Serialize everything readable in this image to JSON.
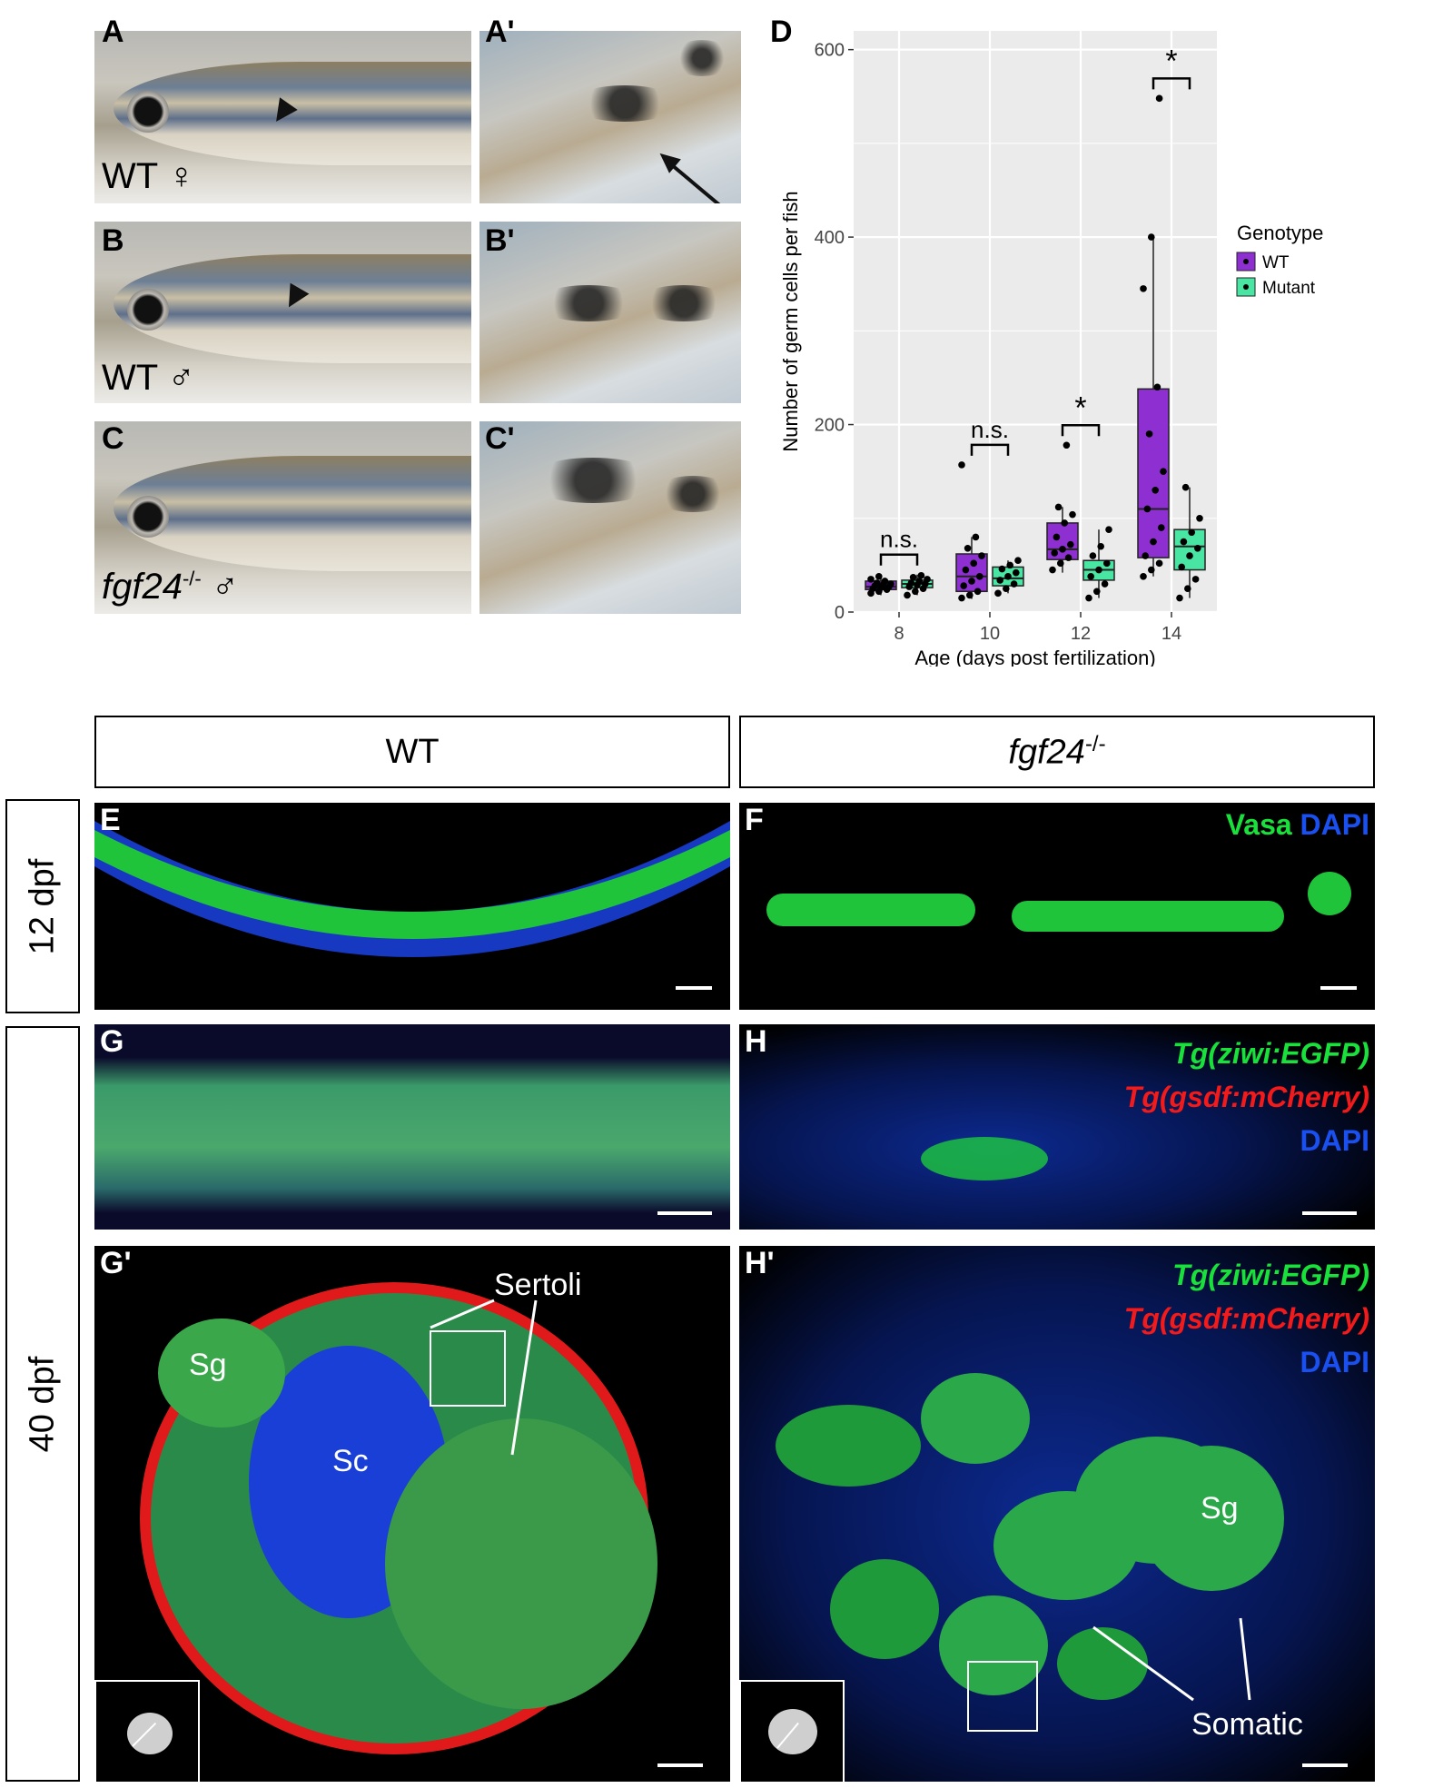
{
  "panels": {
    "A": "A",
    "A_prime": "A'",
    "B": "B",
    "B_prime": "B'",
    "C": "C",
    "C_prime": "C'",
    "D": "D",
    "E": "E",
    "F": "F",
    "G": "G",
    "H": "H",
    "G_prime": "G'",
    "H_prime": "H'"
  },
  "fish_labels": {
    "a": "WT ♀",
    "b": "WT ♂",
    "c_gene": "fgf24",
    "c_sup": "-/-",
    "c_sym": " ♂"
  },
  "column_headers": {
    "wt": "WT",
    "mut_gene": "fgf24",
    "mut_sup": "-/-"
  },
  "row_labels": {
    "top": "12 dpf",
    "bottom": "40 dpf"
  },
  "channels": {
    "vasa": "Vasa",
    "dapi": "DAPI",
    "ziwi": "Tg(ziwi:EGFP)",
    "gsdf": "Tg(gsdf:mCherry)"
  },
  "annotations": {
    "sertoli": "Sertoli",
    "sg": "Sg",
    "sc": "Sc",
    "somatic": "Somatic"
  },
  "colors": {
    "wt": "#8e2fd1",
    "mutant": "#49e5a3",
    "vasa_green": "#19e03a",
    "dapi_blue": "#1a4ff0",
    "mcherry_red": "#f21a1a",
    "panel_bg": "#ebebeb"
  },
  "chart_data": {
    "type": "box",
    "title": "",
    "xlabel": "Age (days post fertilization)",
    "ylabel": "Number of germ cells per fish",
    "categories": [
      "8",
      "10",
      "12",
      "14"
    ],
    "ylim": [
      0,
      620
    ],
    "yticks": [
      0,
      200,
      400,
      600
    ],
    "grid": true,
    "legend": {
      "title": "Genotype",
      "position": "right",
      "entries": [
        "WT",
        "Mutant"
      ]
    },
    "series": [
      {
        "name": "WT",
        "boxes": [
          {
            "q1": 24,
            "median": 27,
            "q3": 33,
            "whisker_low": 18,
            "whisker_high": 40
          },
          {
            "q1": 22,
            "median": 38,
            "q3": 62,
            "whisker_low": 14,
            "whisker_high": 80
          },
          {
            "q1": 56,
            "median": 67,
            "q3": 95,
            "whisker_low": 42,
            "whisker_high": 112
          },
          {
            "q1": 58,
            "median": 110,
            "q3": 238,
            "whisker_low": 38,
            "whisker_high": 400
          }
        ],
        "points": [
          [
            20,
            22,
            24,
            25,
            26,
            27,
            28,
            29,
            30,
            31,
            33,
            35,
            38
          ],
          [
            15,
            18,
            22,
            28,
            33,
            38,
            45,
            52,
            60,
            68,
            80,
            157
          ],
          [
            45,
            52,
            58,
            63,
            67,
            72,
            80,
            95,
            104,
            112,
            178
          ],
          [
            38,
            45,
            52,
            60,
            75,
            90,
            110,
            130,
            150,
            190,
            240,
            345,
            400,
            548
          ]
        ]
      },
      {
        "name": "Mutant",
        "boxes": [
          {
            "q1": 26,
            "median": 30,
            "q3": 34,
            "whisker_low": 18,
            "whisker_high": 40
          },
          {
            "q1": 28,
            "median": 36,
            "q3": 48,
            "whisker_low": 20,
            "whisker_high": 55
          },
          {
            "q1": 34,
            "median": 45,
            "q3": 55,
            "whisker_low": 15,
            "whisker_high": 88
          },
          {
            "q1": 45,
            "median": 70,
            "q3": 88,
            "whisker_low": 15,
            "whisker_high": 133
          }
        ],
        "points": [
          [
            18,
            22,
            25,
            27,
            29,
            30,
            31,
            33,
            35,
            37,
            39
          ],
          [
            20,
            25,
            30,
            34,
            38,
            42,
            46,
            50,
            55
          ],
          [
            15,
            22,
            30,
            38,
            45,
            52,
            60,
            70,
            88
          ],
          [
            15,
            25,
            35,
            48,
            60,
            68,
            75,
            85,
            100,
            133
          ]
        ]
      }
    ],
    "significance": [
      {
        "group": "8",
        "label": "n.s."
      },
      {
        "group": "10",
        "label": "n.s."
      },
      {
        "group": "12",
        "label": "*"
      },
      {
        "group": "14",
        "label": "*"
      }
    ]
  }
}
